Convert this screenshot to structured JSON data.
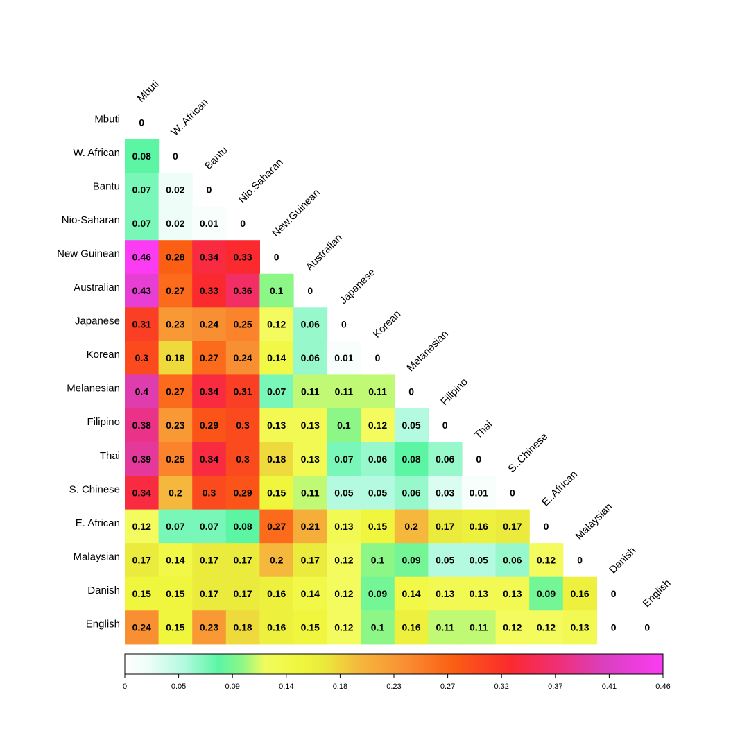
{
  "chart_data": {
    "type": "heatmap",
    "layout": "lower-triangle",
    "title": "",
    "rows": [
      "Mbuti",
      "W. African",
      "Bantu",
      "Nio-Saharan",
      "New Guinean",
      "Australian",
      "Japanese",
      "Korean",
      "Melanesian",
      "Filipino",
      "Thai",
      "S. Chinese",
      "E. African",
      "Malaysian",
      "Danish",
      "English"
    ],
    "columns": [
      "Mbuti",
      "W..African",
      "Bantu",
      "Nio.Saharan",
      "New.Guinean",
      "Australian",
      "Japanese",
      "Korean",
      "Melanesian",
      "Filipino",
      "Thai",
      "S..Chinese",
      "E..African",
      "Malaysian",
      "Danish",
      "English"
    ],
    "values": [
      [
        0
      ],
      [
        0.08,
        0
      ],
      [
        0.07,
        0.02,
        0
      ],
      [
        0.07,
        0.02,
        0.01,
        0
      ],
      [
        0.46,
        0.28,
        0.34,
        0.33,
        0
      ],
      [
        0.43,
        0.27,
        0.33,
        0.36,
        0.1,
        0
      ],
      [
        0.31,
        0.23,
        0.24,
        0.25,
        0.12,
        0.06,
        0
      ],
      [
        0.3,
        0.18,
        0.27,
        0.24,
        0.14,
        0.06,
        0.01,
        0
      ],
      [
        0.4,
        0.27,
        0.34,
        0.31,
        0.07,
        0.11,
        0.11,
        0.11,
        0
      ],
      [
        0.38,
        0.23,
        0.29,
        0.3,
        0.13,
        0.13,
        0.1,
        0.12,
        0.05,
        0
      ],
      [
        0.39,
        0.25,
        0.34,
        0.3,
        0.18,
        0.13,
        0.07,
        0.06,
        0.08,
        0.06,
        0
      ],
      [
        0.34,
        0.2,
        0.3,
        0.29,
        0.15,
        0.11,
        0.05,
        0.05,
        0.06,
        0.03,
        0.01,
        0
      ],
      [
        0.12,
        0.07,
        0.07,
        0.08,
        0.27,
        0.21,
        0.13,
        0.15,
        0.2,
        0.17,
        0.16,
        0.17,
        0
      ],
      [
        0.17,
        0.14,
        0.17,
        0.17,
        0.2,
        0.17,
        0.12,
        0.1,
        0.09,
        0.05,
        0.05,
        0.06,
        0.12,
        0
      ],
      [
        0.15,
        0.15,
        0.17,
        0.17,
        0.16,
        0.14,
        0.12,
        0.09,
        0.14,
        0.13,
        0.13,
        0.13,
        0.09,
        0.16,
        0
      ],
      [
        0.24,
        0.15,
        0.23,
        0.18,
        0.16,
        0.15,
        0.12,
        0.1,
        0.16,
        0.11,
        0.11,
        0.12,
        0.12,
        0.13,
        0,
        0
      ]
    ],
    "color_scale": {
      "min": 0,
      "max": 0.46,
      "ticks": [
        "0",
        "0.05",
        "0.09",
        "0.14",
        "0.18",
        "0.23",
        "0.27",
        "0.32",
        "0.37",
        "0.41",
        "0.46"
      ],
      "stops": [
        {
          "v": 0.0,
          "color": "#ffffff"
        },
        {
          "v": 0.02,
          "color": "#eefdf8"
        },
        {
          "v": 0.05,
          "color": "#b4fae0"
        },
        {
          "v": 0.08,
          "color": "#5cf5a4"
        },
        {
          "v": 0.1,
          "color": "#8cf787"
        },
        {
          "v": 0.12,
          "color": "#f3fb5e"
        },
        {
          "v": 0.15,
          "color": "#f0f63d"
        },
        {
          "v": 0.17,
          "color": "#eaeb3c"
        },
        {
          "v": 0.2,
          "color": "#f5b83d"
        },
        {
          "v": 0.24,
          "color": "#f98f33"
        },
        {
          "v": 0.28,
          "color": "#fb5f13"
        },
        {
          "v": 0.33,
          "color": "#fb2a2f"
        },
        {
          "v": 0.37,
          "color": "#f02f76"
        },
        {
          "v": 0.41,
          "color": "#d940bf"
        },
        {
          "v": 0.46,
          "color": "#fb3cf3"
        }
      ]
    }
  }
}
